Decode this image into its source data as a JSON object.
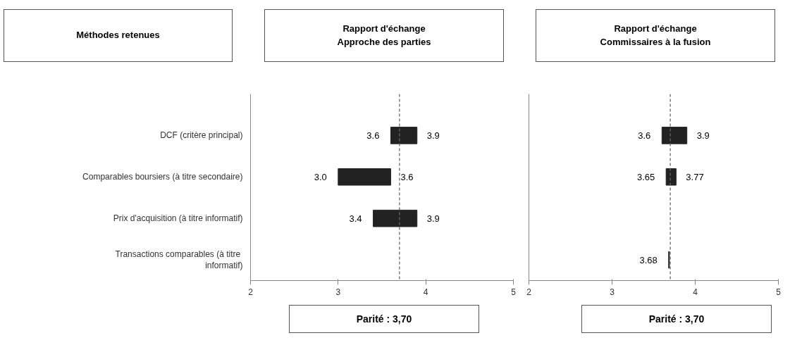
{
  "chart_data": [
    {
      "type": "bar",
      "orientation": "horizontal",
      "title": "Rapport d'échange\nApproche des parties",
      "ylabel": "Méthodes retenues",
      "categories": [
        "DCF (critère principal)",
        "Comparables boursiers (à titre secondaire)",
        "Prix d'acquisition (à titre informatif)",
        "Transactions comparables  (à titre\ninformatif)"
      ],
      "base": [
        3.6,
        3.0,
        3.4,
        null
      ],
      "values": [
        0.3,
        0.6,
        0.5,
        null
      ],
      "color": "#222222",
      "xlim": [
        2,
        5
      ],
      "xticks": [
        2,
        3,
        4,
        5
      ],
      "ref_lines": [
        {
          "axis": "x",
          "value": 3.7,
          "line_style": "dashed",
          "color": "#666666"
        }
      ],
      "annotations": [
        "Parité : 3,70",
        {
          "text": "3.6",
          "x": 3.6,
          "y": "DCF (critère principal)"
        },
        {
          "text": "3.9",
          "x": 3.9,
          "y": "DCF (critère principal)"
        },
        {
          "text": "3.0",
          "x": 3.0,
          "y": "Comparables boursiers (à titre secondaire)"
        },
        {
          "text": "3.6",
          "x": 3.6,
          "y": "Comparables boursiers (à titre secondaire)"
        },
        {
          "text": "3.4",
          "x": 3.4,
          "y": "Prix d'acquisition (à titre informatif)"
        },
        {
          "text": "3.9",
          "x": 3.9,
          "y": "Prix d'acquisition (à titre informatif)"
        }
      ]
    },
    {
      "type": "bar",
      "orientation": "horizontal",
      "title": "Rapport d'échange\nCommissaires à la fusion",
      "tick_labels": "x",
      "categories": [
        "DCF (critère principal)",
        "Comparables boursiers (à titre secondaire)",
        "Prix d'acquisition (à titre informatif)",
        "Transactions comparables  (à titre\ninformatif)"
      ],
      "base": [
        3.6,
        3.65,
        null,
        3.68
      ],
      "values": [
        0.3,
        0.12,
        null,
        0.01
      ],
      "color": "#222222",
      "xlim": [
        2,
        5
      ],
      "xticks": [
        2,
        3,
        4,
        5
      ],
      "ref_lines": [
        {
          "axis": "x",
          "value": 3.7,
          "line_style": "dashed",
          "color": "#666666"
        }
      ],
      "annotations": [
        "Parité : 3,70",
        {
          "text": "3.6",
          "x": 3.6,
          "y": "DCF (critère principal)"
        },
        {
          "text": "3.9",
          "x": 3.9,
          "y": "DCF (critère principal)"
        },
        {
          "text": "3.65",
          "x": 3.65,
          "y": "Comparables boursiers (à titre secondaire)"
        },
        {
          "text": "3.77",
          "x": 3.77,
          "y": "Comparables boursiers (à titre secondaire)"
        },
        {
          "text": "3.68",
          "x": 3.68,
          "y": "Transactions comparables  (à titre\ninformatif)"
        }
      ]
    }
  ]
}
